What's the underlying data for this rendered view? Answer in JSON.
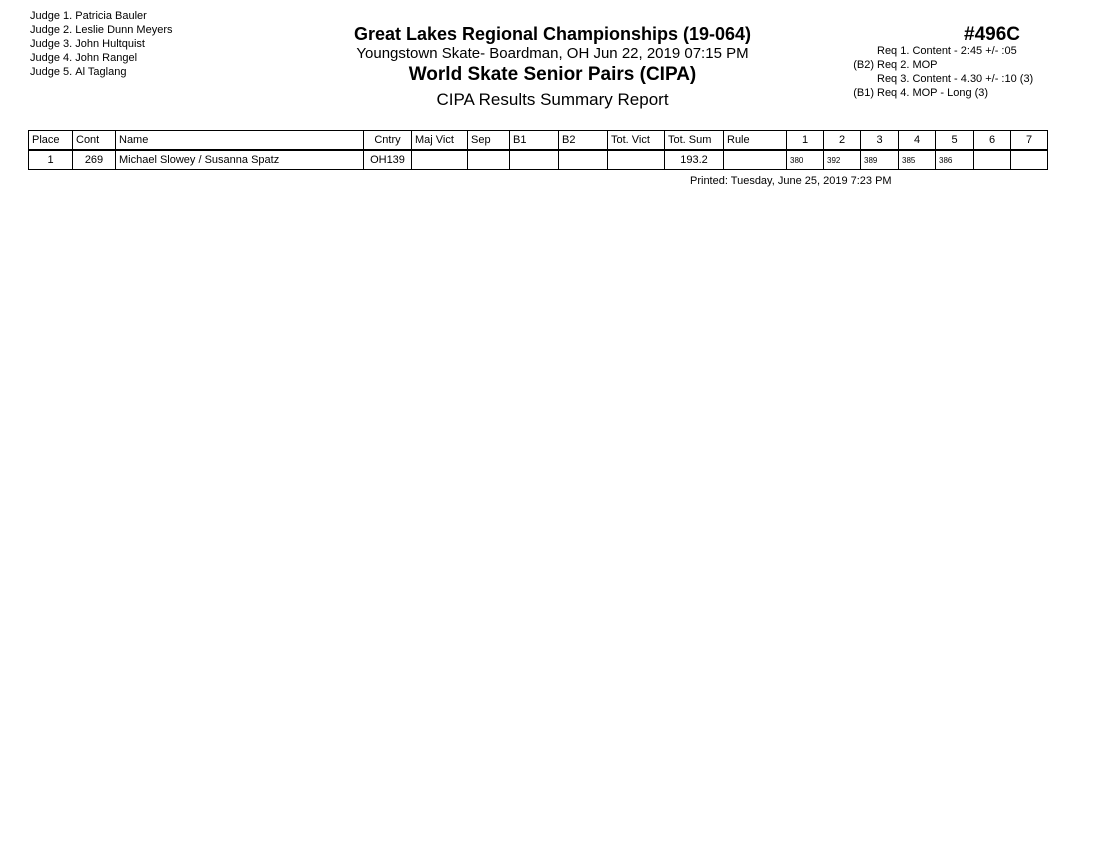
{
  "judges": [
    {
      "label": "Judge  1.",
      "name": "Patricia Bauler"
    },
    {
      "label": "Judge  2.",
      "name": "Leslie Dunn Meyers"
    },
    {
      "label": "Judge  3.",
      "name": "John  Hultquist"
    },
    {
      "label": "Judge  4.",
      "name": "John Rangel"
    },
    {
      "label": "Judge  5.",
      "name": "Al  Taglang"
    }
  ],
  "header": {
    "title": "Great Lakes Regional Championships (19-064)",
    "location": "Youngstown Skate- Boardman, OH  Jun 22, 2019  07:15 PM",
    "event": "World Skate Senior Pairs (CIPA)",
    "report": "CIPA Results Summary Report",
    "code": "#496C"
  },
  "requirements": [
    {
      "prefix": "",
      "text": "Req  1.  Content - 2:45 +/- :05"
    },
    {
      "prefix": "(B2)",
      "text": "Req  2.  MOP"
    },
    {
      "prefix": "",
      "text": "Req  3.  Content - 4.30 +/- :10 (3)"
    },
    {
      "prefix": "(B1)",
      "text": "Req  4.  MOP - Long (3)"
    }
  ],
  "table": {
    "columns": [
      "Place",
      "Cont",
      "Name",
      "Cntry",
      "Maj Vict",
      "Sep",
      "B1",
      "B2",
      "Tot. Vict",
      "Tot. Sum",
      "Rule",
      "1",
      "2",
      "3",
      "4",
      "5",
      "6",
      "7"
    ],
    "rows": [
      {
        "place": "1",
        "cont": "269",
        "name": "Michael Slowey / Susanna Spatz",
        "cntry": "OH139",
        "maj_vict": "",
        "sep": "",
        "b1": "",
        "b2": "",
        "tot_vict": "",
        "tot_sum": "193.2",
        "rule": "",
        "scores": [
          "380",
          "392",
          "389",
          "385",
          "386",
          "",
          ""
        ]
      }
    ]
  },
  "printed": "Printed:  Tuesday, June 25, 2019  7:23 PM"
}
